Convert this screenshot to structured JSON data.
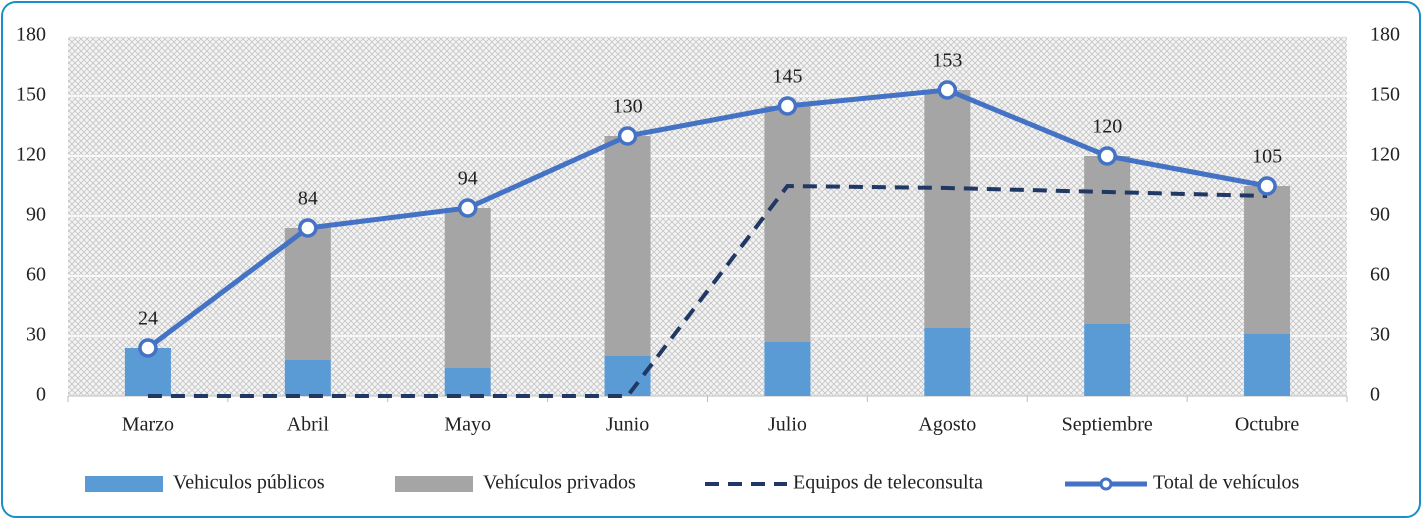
{
  "chart_data": {
    "type": "bar",
    "categories": [
      "Marzo",
      "Abril",
      "Mayo",
      "Junio",
      "Julio",
      "Agosto",
      "Septiembre",
      "Octubre"
    ],
    "stacked": true,
    "series": [
      {
        "name": "Vehiculos públicos",
        "type": "bar",
        "color": "#5b9bd5",
        "values": [
          24,
          18,
          14,
          20,
          27,
          34,
          36,
          31
        ]
      },
      {
        "name": "Vehículos privados",
        "type": "bar",
        "color": "#a5a5a5",
        "values": [
          0,
          66,
          80,
          110,
          118,
          119,
          84,
          74
        ]
      },
      {
        "name": "Equipos de teleconsulta",
        "type": "line",
        "dashed": true,
        "color": "#203864",
        "values": [
          0,
          0,
          0,
          0,
          105,
          104,
          102,
          100
        ]
      },
      {
        "name": "Total de vehículos",
        "type": "line",
        "markers": true,
        "data_labels": true,
        "axis": "y2",
        "color": "#4472c4",
        "values": [
          24,
          84,
          94,
          130,
          145,
          153,
          120,
          105
        ]
      }
    ],
    "ylim": [
      0,
      180
    ],
    "yticks": [
      0,
      30,
      60,
      90,
      120,
      150,
      180
    ],
    "y2lim": [
      0,
      180
    ],
    "y2ticks": [
      0,
      30,
      60,
      90,
      120,
      150,
      180
    ],
    "grid": true,
    "legend": "bottom"
  }
}
